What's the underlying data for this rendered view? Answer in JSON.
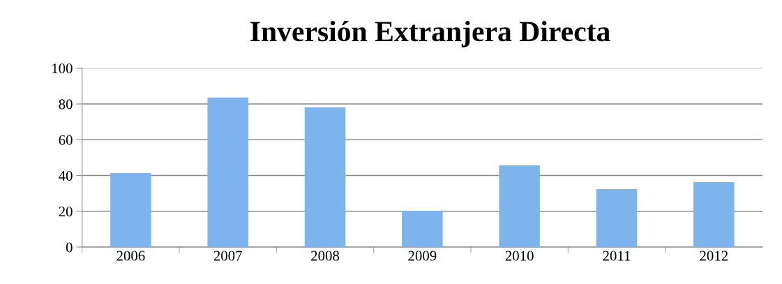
{
  "chart_data": {
    "type": "bar",
    "title": "Inversión Extranjera Directa",
    "categories": [
      "2006",
      "2007",
      "2008",
      "2009",
      "2010",
      "2011",
      "2012"
    ],
    "values": [
      41.4,
      83.6,
      78.1,
      20.3,
      45.7,
      32.4,
      36.3
    ],
    "color": "#7eb4ee",
    "ylim": [
      0,
      100
    ],
    "yticks": [
      0,
      20,
      40,
      60,
      80,
      100
    ],
    "grid": "y"
  }
}
